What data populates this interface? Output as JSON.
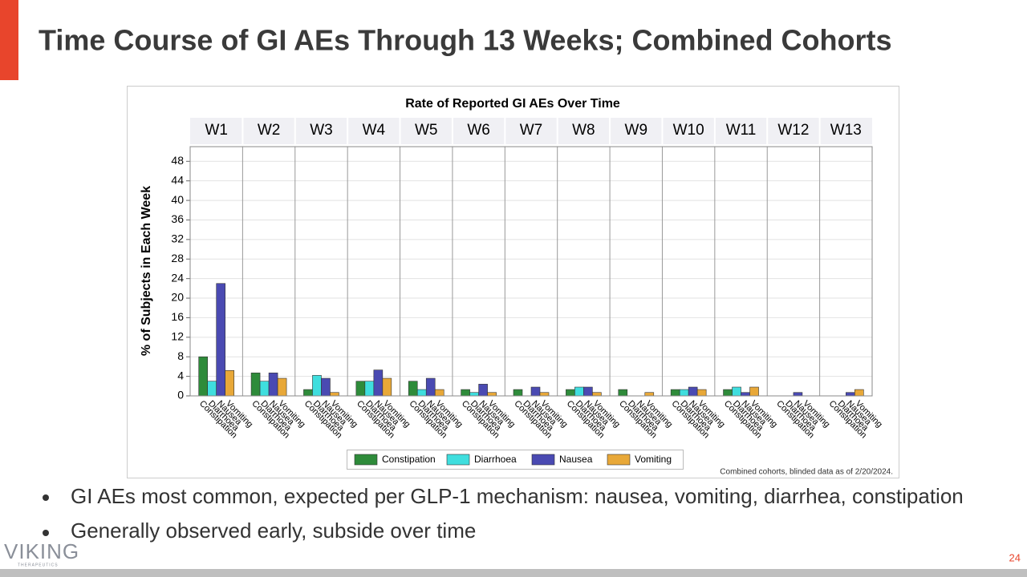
{
  "title": "Time Course of GI AEs Through 13 Weeks; Combined Cohorts",
  "chart_data": {
    "type": "bar",
    "title": "Rate of Reported GI AEs Over Time",
    "y_label": "% of Subjects in Each Week",
    "categories": [
      "W1",
      "W2",
      "W3",
      "W4",
      "W5",
      "W6",
      "W7",
      "W8",
      "W9",
      "W10",
      "W11",
      "W12",
      "W13"
    ],
    "series": [
      {
        "name": "Constipation",
        "color": "#2e8b3a",
        "values": [
          8,
          4.7,
          1.3,
          3,
          3,
          1.3,
          1.3,
          1.3,
          1.3,
          1.3,
          1.3,
          0,
          0
        ]
      },
      {
        "name": "Diarrhoea",
        "color": "#3fdede",
        "values": [
          3,
          3,
          4.2,
          3,
          1.3,
          0.7,
          0,
          1.8,
          0,
          1.3,
          1.8,
          0,
          0
        ]
      },
      {
        "name": "Nausea",
        "color": "#4a4ab2",
        "values": [
          23,
          4.7,
          3.6,
          5.3,
          3.6,
          2.4,
          1.8,
          1.8,
          0,
          1.8,
          0.7,
          0.7,
          0.7
        ]
      },
      {
        "name": "Vomiting",
        "color": "#e8a838",
        "values": [
          5.2,
          3.6,
          0.7,
          3.6,
          1.3,
          0.7,
          0.7,
          0.7,
          0.7,
          1.3,
          1.8,
          0,
          1.3
        ]
      }
    ],
    "ylim": [
      0,
      51
    ],
    "yticks": [
      0,
      4,
      8,
      12,
      16,
      20,
      24,
      28,
      32,
      36,
      40,
      44,
      48
    ],
    "grid": true,
    "legend": "bottom",
    "note": "Combined cohorts, blinded data as of 2/20/2024."
  },
  "bullets": [
    "GI AEs most common, expected per GLP-1 mechanism: nausea, vomiting, diarrhea, constipation",
    "Generally observed early, subside over time"
  ],
  "logo": {
    "name": "VIKING",
    "tagline": "THERAPEUTICS"
  },
  "page_number": "24"
}
